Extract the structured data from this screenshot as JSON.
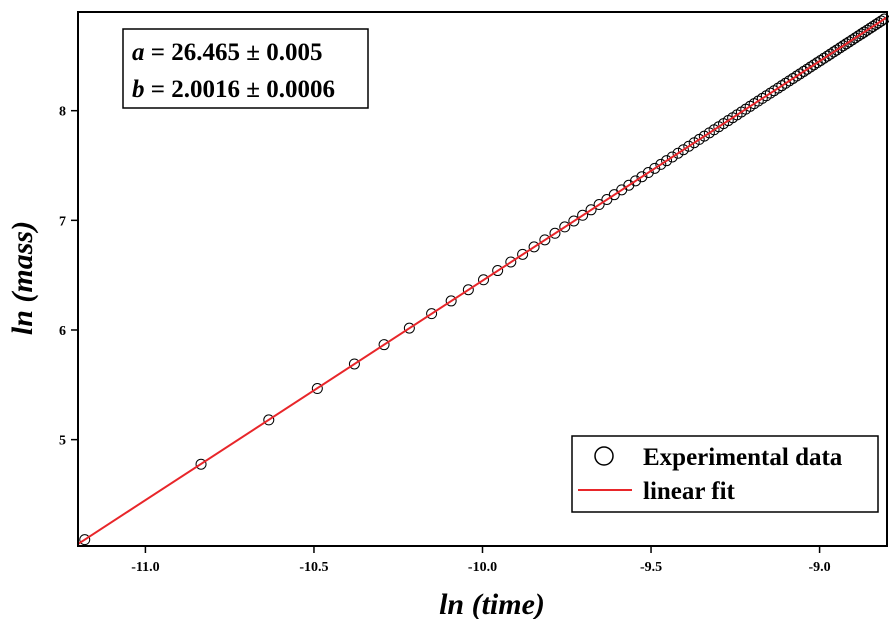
{
  "chart_data": {
    "type": "scatter",
    "xlabel": "ln (time)",
    "ylabel": "ln (mass)",
    "xlim": [
      -11.2,
      -8.8
    ],
    "ylim": [
      4.03,
      8.9
    ],
    "x_ticks": [
      {
        "value": -11.0,
        "label": "-11.0"
      },
      {
        "value": -10.5,
        "label": "-10.5"
      },
      {
        "value": -10.0,
        "label": "-10.0"
      },
      {
        "value": -9.5,
        "label": "-9.5"
      },
      {
        "value": -9.0,
        "label": "-9.0"
      }
    ],
    "y_ticks": [
      {
        "value": 5,
        "label": "5"
      },
      {
        "value": 6,
        "label": "6"
      },
      {
        "value": 7,
        "label": "7"
      },
      {
        "value": 8,
        "label": "8"
      }
    ],
    "annotation": {
      "line1": {
        "var": "a",
        "text": " = 26.465 ± 0.005"
      },
      "line2": {
        "var": "b",
        "text": " = 2.0016 ± 0.0006"
      }
    },
    "legend": {
      "position": "bottom-right",
      "entries": [
        {
          "label": "Experimental data",
          "marker": "open-circle"
        },
        {
          "label": "linear fit",
          "marker": "line"
        }
      ]
    },
    "colors": {
      "fit_line": "#e8262a",
      "markers": "#000000",
      "axes": "#000000"
    },
    "grid": false,
    "series": [
      {
        "name": "Experimental data",
        "type": "scatter",
        "x": [
          -11.18,
          -10.835,
          -10.634,
          -10.49,
          -10.38,
          -10.292,
          -10.217,
          -10.151,
          -10.093,
          -10.042,
          -9.997,
          -9.955,
          -9.916,
          -9.881,
          -9.847,
          -9.815,
          -9.785,
          -9.756,
          -9.729,
          -9.703,
          -9.678,
          -9.654,
          -9.631,
          -9.609,
          -9.587,
          -9.566,
          -9.546,
          -9.527,
          -9.508,
          -9.489,
          -9.471,
          -9.454,
          -9.437,
          -9.42,
          -9.404,
          -9.388,
          -9.372,
          -9.357,
          -9.342,
          -9.327,
          -9.313,
          -9.299,
          -9.285,
          -9.271,
          -9.258,
          -9.245,
          -9.232,
          -9.219,
          -9.206,
          -9.194,
          -9.182,
          -9.17,
          -9.158,
          -9.146,
          -9.135,
          -9.123,
          -9.112,
          -9.101,
          -9.09,
          -9.079,
          -9.068,
          -9.058,
          -9.047,
          -9.037,
          -9.027,
          -9.017,
          -9.007,
          -8.997,
          -8.987,
          -8.977,
          -8.968,
          -8.958,
          -8.949,
          -8.939,
          -8.93,
          -8.921,
          -8.912,
          -8.903,
          -8.894,
          -8.885,
          -8.876,
          -8.868,
          -8.859,
          -8.85,
          -8.842,
          -8.833,
          -8.825,
          -8.817,
          -8.808
        ],
        "y": [
          4.088,
          4.776,
          5.18,
          5.466,
          5.69,
          5.866,
          6.017,
          6.149,
          6.265,
          6.367,
          6.458,
          6.542,
          6.62,
          6.69,
          6.758,
          6.822,
          6.882,
          6.94,
          6.994,
          7.046,
          7.096,
          7.144,
          7.19,
          7.234,
          7.278,
          7.32,
          7.36,
          7.398,
          7.436,
          7.474,
          7.51,
          7.544,
          7.578,
          7.612,
          7.644,
          7.676,
          7.708,
          7.738,
          7.768,
          7.798,
          7.826,
          7.854,
          7.882,
          7.91,
          7.936,
          7.962,
          7.988,
          8.014,
          8.04,
          8.064,
          8.088,
          8.112,
          8.136,
          8.16,
          8.182,
          8.206,
          8.228,
          8.25,
          8.272,
          8.294,
          8.316,
          8.336,
          8.358,
          8.378,
          8.398,
          8.418,
          8.438,
          8.458,
          8.478,
          8.498,
          8.516,
          8.536,
          8.554,
          8.574,
          8.592,
          8.61,
          8.628,
          8.646,
          8.664,
          8.682,
          8.7,
          8.716,
          8.734,
          8.752,
          8.768,
          8.786,
          8.802,
          8.818,
          8.836
        ]
      },
      {
        "name": "linear fit",
        "type": "line",
        "x": [
          -11.2,
          -8.8
        ],
        "y": [
          4.048,
          8.8521
        ]
      }
    ]
  }
}
